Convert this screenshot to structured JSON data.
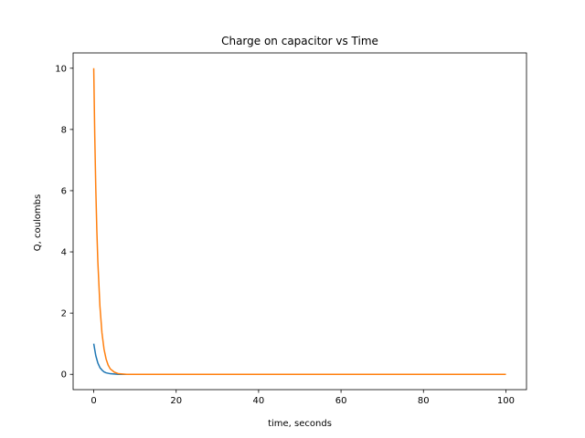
{
  "chart_data": {
    "type": "line",
    "title": "Charge on capacitor vs Time",
    "xlabel": "time, seconds",
    "ylabel": "Q, coulombs",
    "xlim": [
      -5,
      105
    ],
    "ylim": [
      -0.5,
      10.5
    ],
    "xticks": [
      0,
      20,
      40,
      60,
      80,
      100
    ],
    "yticks": [
      0,
      2,
      4,
      6,
      8,
      10
    ],
    "grid": false,
    "legend": "none",
    "series": [
      {
        "color": "#1f77b4",
        "x": [
          0,
          0.5,
          1,
          1.5,
          2,
          2.5,
          3,
          4,
          5,
          6,
          7,
          8,
          10,
          15,
          20,
          40,
          60,
          80,
          100
        ],
        "y": [
          1.0,
          0.61,
          0.37,
          0.22,
          0.14,
          0.08,
          0.05,
          0.02,
          0.01,
          0.0,
          0.0,
          0.0,
          0.0,
          0.0,
          0.0,
          0.0,
          0.0,
          0.0,
          0.0
        ]
      },
      {
        "color": "#ff7f0e",
        "x": [
          0,
          0.25,
          0.5,
          0.75,
          1,
          1.5,
          2,
          2.5,
          3,
          3.5,
          4,
          5,
          6,
          7,
          8,
          10,
          15,
          20,
          40,
          60,
          80,
          100
        ],
        "y": [
          10.0,
          7.79,
          6.07,
          4.72,
          3.68,
          2.23,
          1.35,
          0.82,
          0.5,
          0.3,
          0.18,
          0.07,
          0.02,
          0.01,
          0.0,
          0.0,
          0.0,
          0.0,
          0.0,
          0.0,
          0.0,
          0.0
        ]
      }
    ]
  }
}
